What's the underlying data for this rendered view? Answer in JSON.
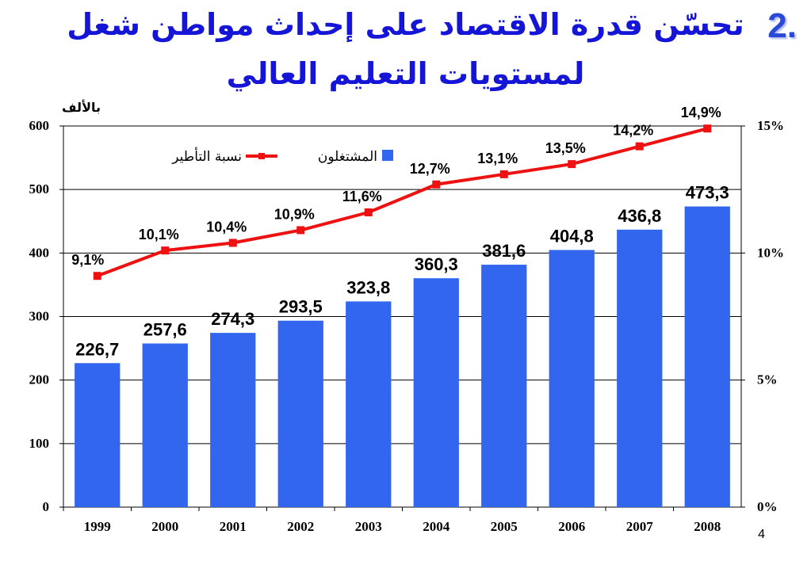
{
  "slide": {
    "number": "2.",
    "title_line1": "تحسّن قدرة الاقتصاد على إحداث مواطن شغل",
    "title_line2": "لمستويات التعليم العالي",
    "page_number": "4"
  },
  "colors": {
    "bar": "#3366ee",
    "line": "#ee1111",
    "title": "#1515d8",
    "grid": "#000000"
  },
  "chart_data": {
    "type": "bar",
    "categories": [
      "1999",
      "2000",
      "2001",
      "2002",
      "2003",
      "2004",
      "2005",
      "2006",
      "2007",
      "2008"
    ],
    "y_unit_label": "بالألف",
    "ylim": [
      0,
      600
    ],
    "y_ticks": [
      "0",
      "100",
      "200",
      "300",
      "400",
      "500",
      "600"
    ],
    "y2_lim": [
      0,
      15
    ],
    "y2_ticks": [
      "0%",
      "5%",
      "10%",
      "15%"
    ],
    "legend_position": "top-center",
    "grid": true,
    "series": [
      {
        "name": "المشتغلون",
        "type": "bar",
        "axis": "left",
        "values": [
          226.7,
          257.6,
          274.3,
          293.5,
          323.8,
          360.3,
          381.6,
          404.8,
          436.8,
          473.3
        ],
        "labels": [
          "226,7",
          "257,6",
          "274,3",
          "293,5",
          "323,8",
          "360,3",
          "381,6",
          "404,8",
          "436,8",
          "473,3"
        ]
      },
      {
        "name": "نسبة التأطير",
        "type": "line",
        "axis": "right",
        "values": [
          9.1,
          10.1,
          10.4,
          10.9,
          11.6,
          12.7,
          13.1,
          13.5,
          14.2,
          14.9
        ],
        "labels": [
          "9,1%",
          "10,1%",
          "10,4%",
          "10,9%",
          "11,6%",
          "12,7%",
          "13,1%",
          "13,5%",
          "14,2%",
          "14,9%"
        ]
      }
    ]
  }
}
